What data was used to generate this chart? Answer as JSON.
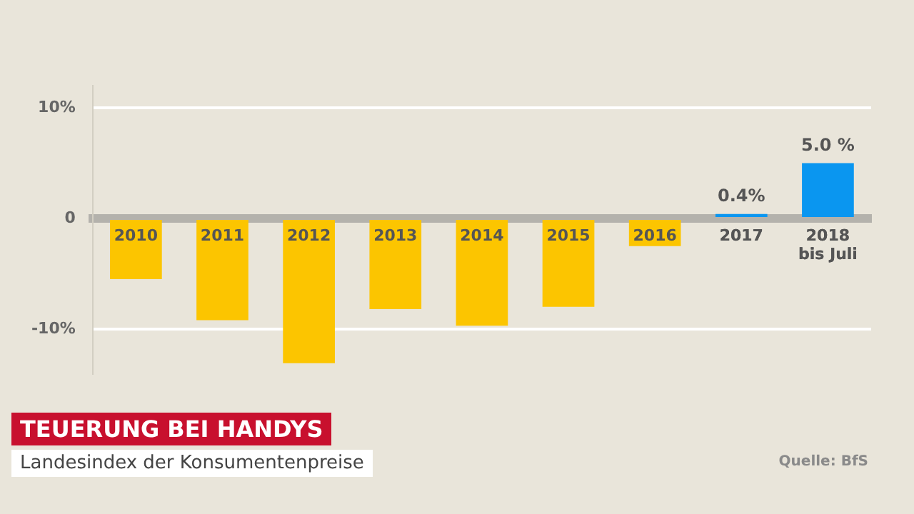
{
  "chart_data": {
    "type": "bar",
    "title": "TEUERUNG BEI HANDYS",
    "subtitle": "Landesindex der Konsumentenpreise",
    "annotations": [
      "Quelle: BfS"
    ],
    "categories": [
      "2010",
      "2011",
      "2012",
      "2013",
      "2014",
      "2015",
      "2016",
      "2017",
      "2018\nbis Juli"
    ],
    "values": [
      -5.5,
      -9.2,
      -13.1,
      -8.2,
      -9.7,
      -8.0,
      -2.5,
      0.4,
      5.0
    ],
    "colors": [
      "#fcc500",
      "#fcc500",
      "#fcc500",
      "#fcc500",
      "#fcc500",
      "#fcc500",
      "#fcc500",
      "#0a96f0",
      "#0a96f0"
    ],
    "value_labels": [
      null,
      null,
      null,
      null,
      null,
      null,
      null,
      "0.4%",
      "5.0 %"
    ],
    "ylim": [
      -14,
      12
    ],
    "yticks": [
      {
        "value": 10,
        "label": "10%"
      },
      {
        "value": 0,
        "label": "0"
      },
      {
        "value": -10,
        "label": "-10%"
      }
    ],
    "grid": "y",
    "legend": false
  }
}
